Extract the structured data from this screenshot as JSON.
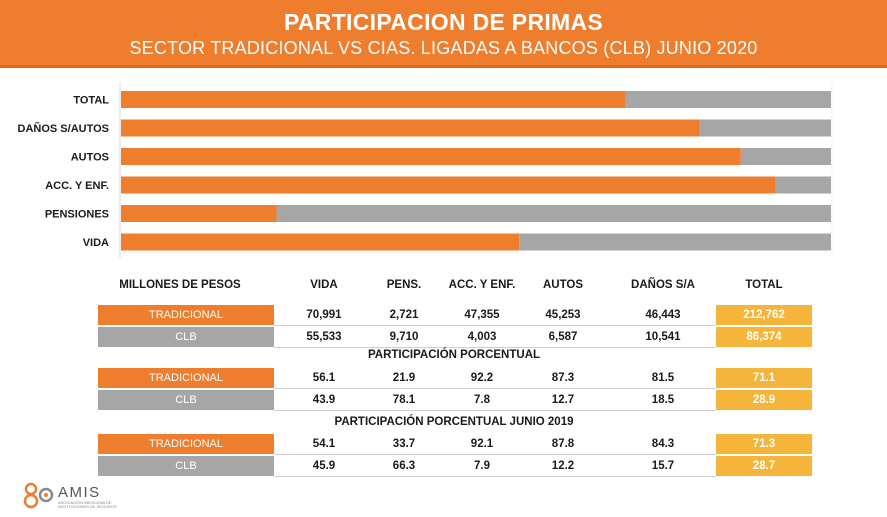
{
  "header": {
    "title": "PARTICIPACION DE PRIMAS",
    "subtitle": "SECTOR TRADICIONAL VS CIAS. LIGADAS A BANCOS (CLB) JUNIO 2020"
  },
  "colors": {
    "tradicional": "#ee7d2d",
    "clb": "#a6a6a6",
    "total": "#f4b53a"
  },
  "chart_data": {
    "type": "bar",
    "orientation": "horizontal",
    "stacked": true,
    "percent": true,
    "categories": [
      "TOTAL",
      "DAÑOS S/AUTOS",
      "AUTOS",
      "ACC. Y ENF.",
      "PENSIONES",
      "VIDA"
    ],
    "series": [
      {
        "name": "TRADICIONAL",
        "values": [
          71.1,
          81.5,
          87.3,
          92.2,
          21.9,
          56.1
        ]
      },
      {
        "name": "CLB",
        "values": [
          28.9,
          18.5,
          12.7,
          7.8,
          78.1,
          43.9
        ]
      }
    ],
    "xlim": [
      0,
      100
    ]
  },
  "table": {
    "headers": [
      "MILLONES DE PESOS",
      "VIDA",
      "PENS.",
      "ACC. Y ENF.",
      "AUTOS",
      "DAÑOS S/A",
      "TOTAL"
    ],
    "blocks": [
      {
        "title": "",
        "rows": [
          {
            "label": "TRADICIONAL",
            "values": [
              "70,991",
              "2,721",
              "47,355",
              "45,253",
              "46,443"
            ],
            "total": "212,762"
          },
          {
            "label": "CLB",
            "values": [
              "55,533",
              "9,710",
              "4,003",
              "6,587",
              "10,541"
            ],
            "total": "86,374"
          }
        ]
      },
      {
        "title": "PARTICIPACIÓN PORCENTUAL",
        "rows": [
          {
            "label": "TRADICIONAL",
            "values": [
              "56.1",
              "21.9",
              "92.2",
              "87.3",
              "81.5"
            ],
            "total": "71.1"
          },
          {
            "label": "CLB",
            "values": [
              "43.9",
              "78.1",
              "7.8",
              "12.7",
              "18.5"
            ],
            "total": "28.9"
          }
        ]
      },
      {
        "title": "PARTICIPACIÓN PORCENTUAL  JUNIO 2019",
        "rows": [
          {
            "label": "TRADICIONAL",
            "values": [
              "54.1",
              "33.7",
              "92.1",
              "87.8",
              "84.3"
            ],
            "total": "71.3"
          },
          {
            "label": "CLB",
            "values": [
              "45.9",
              "66.3",
              "7.9",
              "12.2",
              "15.7"
            ],
            "total": "28.7"
          }
        ]
      }
    ]
  },
  "logo": {
    "name": "AMIS",
    "tagline": "ASOCIACIÓN MEXICANA DE INSTITUCIONES DE SEGUROS"
  }
}
